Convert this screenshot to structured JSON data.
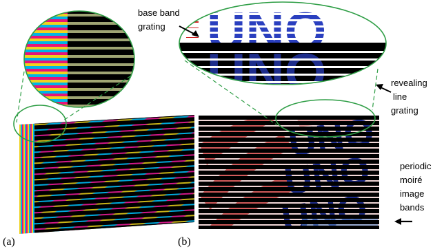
{
  "panels": {
    "a": {
      "label": "(a)"
    },
    "b": {
      "label": "(b)"
    }
  },
  "annotations": {
    "base_band_grating": [
      "base band",
      "grating"
    ],
    "revealing_line_grating": [
      "revealing",
      "line",
      "grating"
    ],
    "periodic_moire_image_bands": [
      "periodic",
      "moiré",
      "image",
      "bands"
    ]
  },
  "image_text": "UNO",
  "colors": {
    "cyan": "#00b4e6",
    "magenta": "#e6147a",
    "yellow": "#f0d21e",
    "navy": "#1e2d8c",
    "red": "#c83232",
    "callout": "#2f9e46"
  }
}
